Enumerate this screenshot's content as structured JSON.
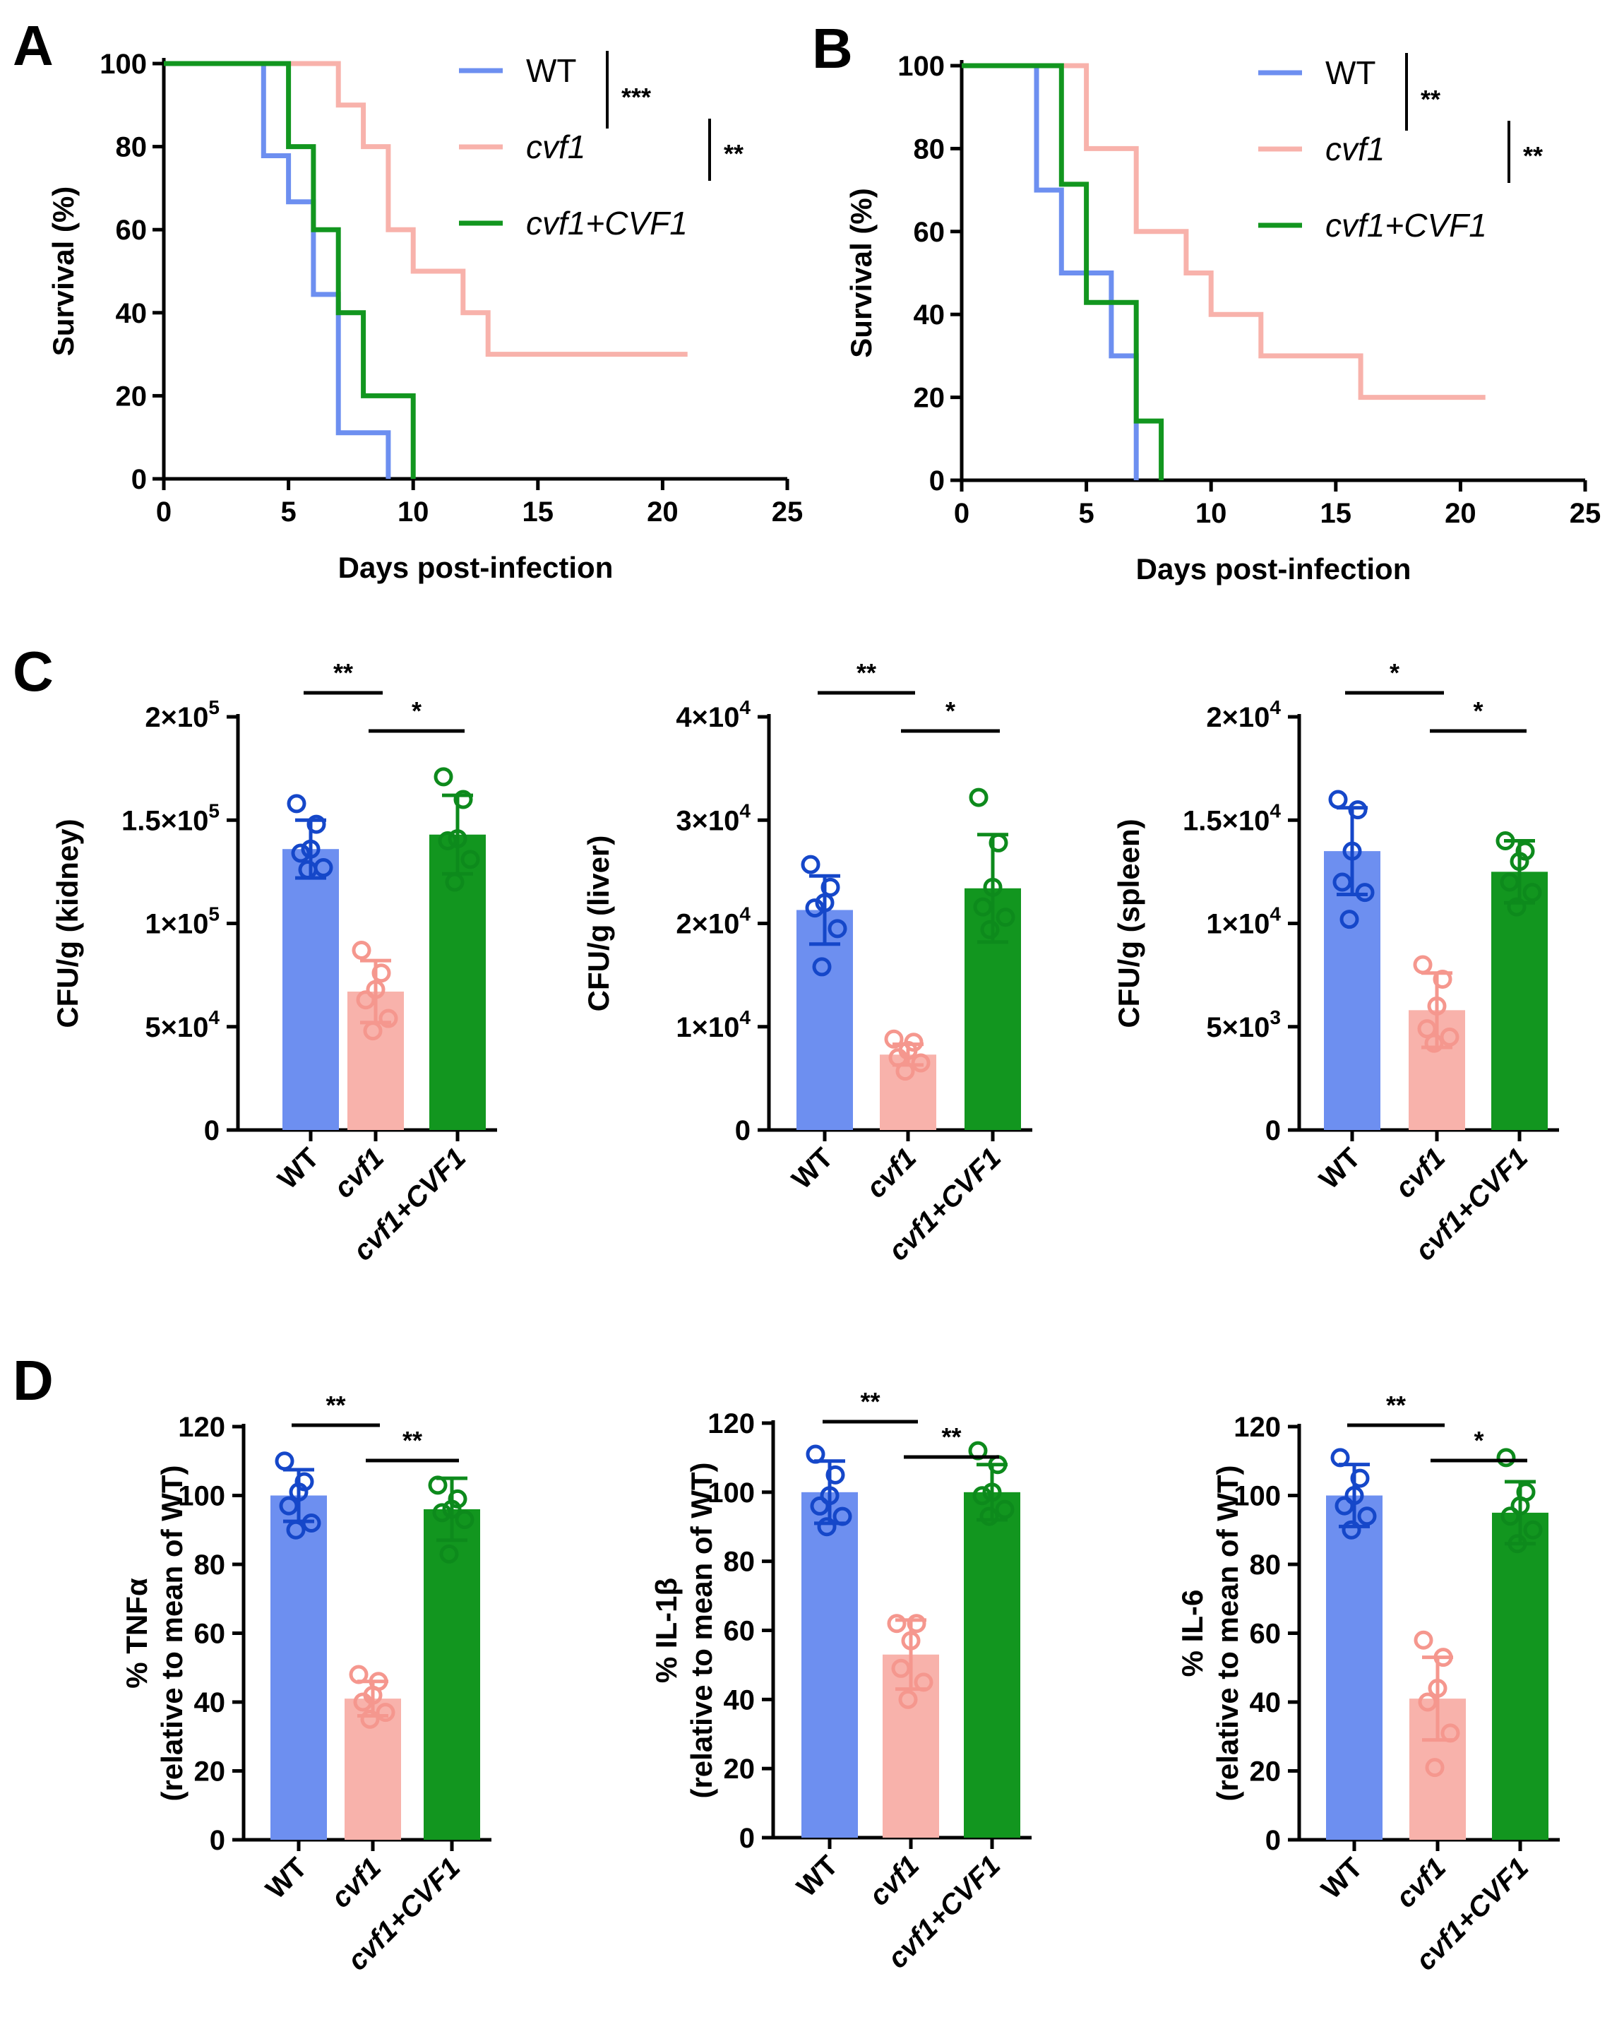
{
  "panel_labels": [
    "A",
    "B",
    "C",
    "D"
  ],
  "colors": {
    "WT": "#6d8ff0",
    "cvf1": "#f8b2ab",
    "cvf1+CVF1": "#12961f",
    "dot_WT": "#1547c9",
    "dot_cvf1": "#f5978e",
    "dot_cvf1+CVF1": "#0d8a1c"
  },
  "chart_data": [
    {
      "id": "A",
      "type": "line",
      "subtype": "survival-step",
      "xlabel": "Days post-infection",
      "ylabel": "Survival (%)",
      "xlim": [
        0,
        25
      ],
      "ylim": [
        0,
        100
      ],
      "xticks": [
        "0",
        "5",
        "10",
        "15",
        "20",
        "25"
      ],
      "yticks": [
        "0",
        "20",
        "40",
        "60",
        "80",
        "100"
      ],
      "series": [
        {
          "name": "WT",
          "italic": false,
          "points": [
            [
              0,
              100
            ],
            [
              4,
              100
            ],
            [
              4,
              77.8
            ],
            [
              5,
              77.8
            ],
            [
              5,
              66.7
            ],
            [
              6,
              66.7
            ],
            [
              6,
              44.4
            ],
            [
              7,
              44.4
            ],
            [
              7,
              11.1
            ],
            [
              9,
              11.1
            ],
            [
              9,
              0
            ]
          ]
        },
        {
          "name": "cvf1",
          "italic": true,
          "points": [
            [
              0,
              100
            ],
            [
              7,
              100
            ],
            [
              7,
              90
            ],
            [
              8,
              90
            ],
            [
              8,
              80
            ],
            [
              9,
              80
            ],
            [
              9,
              60
            ],
            [
              10,
              60
            ],
            [
              10,
              50
            ],
            [
              12,
              50
            ],
            [
              12,
              40
            ],
            [
              13,
              40
            ],
            [
              13,
              30
            ],
            [
              21,
              30
            ]
          ]
        },
        {
          "name": "cvf1+CVF1",
          "italic": true,
          "points": [
            [
              0,
              100
            ],
            [
              5,
              100
            ],
            [
              5,
              80
            ],
            [
              6,
              80
            ],
            [
              6,
              60
            ],
            [
              7,
              60
            ],
            [
              7,
              40
            ],
            [
              8,
              40
            ],
            [
              8,
              20
            ],
            [
              10,
              20
            ],
            [
              10,
              0
            ]
          ]
        }
      ],
      "significance": [
        "***",
        "**"
      ]
    },
    {
      "id": "B",
      "type": "line",
      "subtype": "survival-step",
      "xlabel": "Days post-infection",
      "ylabel": "Survival (%)",
      "xlim": [
        0,
        25
      ],
      "ylim": [
        0,
        100
      ],
      "xticks": [
        "0",
        "5",
        "10",
        "15",
        "20",
        "25"
      ],
      "yticks": [
        "0",
        "20",
        "40",
        "60",
        "80",
        "100"
      ],
      "series": [
        {
          "name": "WT",
          "italic": false,
          "points": [
            [
              0,
              100
            ],
            [
              3,
              100
            ],
            [
              3,
              70
            ],
            [
              4,
              70
            ],
            [
              4,
              50
            ],
            [
              6,
              50
            ],
            [
              6,
              30
            ],
            [
              7,
              30
            ],
            [
              7,
              0
            ]
          ]
        },
        {
          "name": "cvf1",
          "italic": true,
          "points": [
            [
              0,
              100
            ],
            [
              5,
              100
            ],
            [
              5,
              80
            ],
            [
              7,
              80
            ],
            [
              7,
              60
            ],
            [
              9,
              60
            ],
            [
              9,
              50
            ],
            [
              10,
              50
            ],
            [
              10,
              40
            ],
            [
              12,
              40
            ],
            [
              12,
              30
            ],
            [
              16,
              30
            ],
            [
              16,
              20
            ],
            [
              21,
              20
            ]
          ]
        },
        {
          "name": "cvf1+CVF1",
          "italic": true,
          "points": [
            [
              0,
              100
            ],
            [
              4,
              100
            ],
            [
              4,
              71.4
            ],
            [
              5,
              71.4
            ],
            [
              5,
              42.9
            ],
            [
              7,
              42.9
            ],
            [
              7,
              14.3
            ],
            [
              8,
              14.3
            ],
            [
              8,
              0
            ]
          ]
        }
      ],
      "significance": [
        "**",
        "**"
      ]
    },
    {
      "id": "C1",
      "type": "bar",
      "ylabel": "CFU/g (kidney)",
      "ylim": [
        0,
        200000
      ],
      "yticks": [
        {
          "v": 0,
          "m": "0",
          "e": ""
        },
        {
          "v": 50000,
          "m": "5×10",
          "e": "4"
        },
        {
          "v": 100000,
          "m": "1×10",
          "e": "5"
        },
        {
          "v": 150000,
          "m": "1.5×10",
          "e": "5"
        },
        {
          "v": 200000,
          "m": "2×10",
          "e": "5"
        }
      ],
      "categories": [
        "WT",
        "cvf1",
        "cvf1+CVF1"
      ],
      "values": [
        136000,
        67000,
        143000
      ],
      "sd": [
        14000,
        15000,
        19000
      ],
      "points": [
        [
          158000,
          148000,
          136000,
          134000,
          127000,
          126000
        ],
        [
          87000,
          76000,
          68000,
          63000,
          54000,
          48000
        ],
        [
          171000,
          160000,
          141000,
          140000,
          131000,
          120000
        ]
      ],
      "significance": [
        {
          "from": 0,
          "to": 1,
          "label": "**"
        },
        {
          "from": 1,
          "to": 2,
          "label": "*"
        }
      ]
    },
    {
      "id": "C2",
      "type": "bar",
      "ylabel": "CFU/g (liver)",
      "ylim": [
        0,
        40000
      ],
      "yticks": [
        {
          "v": 0,
          "m": "0",
          "e": ""
        },
        {
          "v": 10000,
          "m": "1×10",
          "e": "4"
        },
        {
          "v": 20000,
          "m": "2×10",
          "e": "4"
        },
        {
          "v": 30000,
          "m": "3×10",
          "e": "4"
        },
        {
          "v": 40000,
          "m": "4×10",
          "e": "4"
        }
      ],
      "categories": [
        "WT",
        "cvf1",
        "cvf1+CVF1"
      ],
      "values": [
        21300,
        7300,
        23400
      ],
      "sd": [
        3300,
        1000,
        5200
      ],
      "points": [
        [
          25700,
          23500,
          22000,
          21500,
          19500,
          15800
        ],
        [
          8800,
          8500,
          7700,
          7000,
          6500,
          5700
        ],
        [
          32200,
          27800,
          23500,
          21600,
          20600,
          19400
        ]
      ],
      "significance": [
        {
          "from": 0,
          "to": 1,
          "label": "**"
        },
        {
          "from": 1,
          "to": 2,
          "label": "*"
        }
      ]
    },
    {
      "id": "C3",
      "type": "bar",
      "ylabel": "CFU/g (spleen)",
      "ylim": [
        0,
        20000
      ],
      "yticks": [
        {
          "v": 0,
          "m": "0",
          "e": ""
        },
        {
          "v": 5000,
          "m": "5×10",
          "e": "3"
        },
        {
          "v": 10000,
          "m": "1×10",
          "e": "4"
        },
        {
          "v": 15000,
          "m": "1.5×10",
          "e": "4"
        },
        {
          "v": 20000,
          "m": "2×10",
          "e": "4"
        }
      ],
      "categories": [
        "WT",
        "cvf1",
        "cvf1+CVF1"
      ],
      "values": [
        13500,
        5800,
        12500
      ],
      "sd": [
        2100,
        1800,
        1500
      ],
      "points": [
        [
          16000,
          15500,
          13500,
          12000,
          11500,
          10200
        ],
        [
          8000,
          7300,
          6000,
          4900,
          4500,
          4200
        ],
        [
          14000,
          13500,
          13000,
          12000,
          11500,
          10800
        ]
      ],
      "significance": [
        {
          "from": 0,
          "to": 1,
          "label": "*"
        },
        {
          "from": 1,
          "to": 2,
          "label": "*"
        }
      ]
    },
    {
      "id": "D1",
      "type": "bar",
      "ylabel": "% TNFα",
      "ylabel2": "(relative to mean of WT)",
      "ylim": [
        0,
        120
      ],
      "yticks": [
        {
          "v": 0,
          "m": "0",
          "e": ""
        },
        {
          "v": 20,
          "m": "20",
          "e": ""
        },
        {
          "v": 40,
          "m": "40",
          "e": ""
        },
        {
          "v": 60,
          "m": "60",
          "e": ""
        },
        {
          "v": 80,
          "m": "80",
          "e": ""
        },
        {
          "v": 100,
          "m": "100",
          "e": ""
        },
        {
          "v": 120,
          "m": "120",
          "e": ""
        }
      ],
      "categories": [
        "WT",
        "cvf1",
        "cvf1+CVF1"
      ],
      "values": [
        100,
        41,
        96
      ],
      "sd": [
        7.5,
        5,
        9
      ],
      "points": [
        [
          110,
          104,
          101,
          97,
          92,
          90
        ],
        [
          48,
          46,
          42,
          40,
          37,
          35
        ],
        [
          103,
          99,
          96,
          95,
          93,
          83
        ]
      ],
      "significance": [
        {
          "from": 0,
          "to": 1,
          "label": "**"
        },
        {
          "from": 1,
          "to": 2,
          "label": "**"
        }
      ]
    },
    {
      "id": "D2",
      "type": "bar",
      "ylabel": "% IL-1β",
      "ylabel2": "(relative to mean of WT)",
      "ylim": [
        0,
        120
      ],
      "yticks": [
        {
          "v": 0,
          "m": "0",
          "e": ""
        },
        {
          "v": 20,
          "m": "20",
          "e": ""
        },
        {
          "v": 40,
          "m": "40",
          "e": ""
        },
        {
          "v": 60,
          "m": "60",
          "e": ""
        },
        {
          "v": 80,
          "m": "80",
          "e": ""
        },
        {
          "v": 100,
          "m": "100",
          "e": ""
        },
        {
          "v": 120,
          "m": "120",
          "e": ""
        }
      ],
      "categories": [
        "WT",
        "cvf1",
        "cvf1+CVF1"
      ],
      "values": [
        100,
        53,
        100
      ],
      "sd": [
        9,
        10,
        8
      ],
      "points": [
        [
          111,
          105,
          99,
          96,
          93,
          90
        ],
        [
          62,
          62,
          57,
          49,
          45,
          40
        ],
        [
          112,
          108,
          100,
          99,
          95,
          93
        ]
      ],
      "significance": [
        {
          "from": 0,
          "to": 1,
          "label": "**"
        },
        {
          "from": 1,
          "to": 2,
          "label": "**"
        }
      ]
    },
    {
      "id": "D3",
      "type": "bar",
      "ylabel": "% IL-6",
      "ylabel2": "(relative to mean of WT)",
      "ylim": [
        0,
        120
      ],
      "yticks": [
        {
          "v": 0,
          "m": "0",
          "e": ""
        },
        {
          "v": 20,
          "m": "20",
          "e": ""
        },
        {
          "v": 40,
          "m": "40",
          "e": ""
        },
        {
          "v": 60,
          "m": "60",
          "e": ""
        },
        {
          "v": 80,
          "m": "80",
          "e": ""
        },
        {
          "v": 100,
          "m": "100",
          "e": ""
        },
        {
          "v": 120,
          "m": "120",
          "e": ""
        }
      ],
      "categories": [
        "WT",
        "cvf1",
        "cvf1+CVF1"
      ],
      "values": [
        100,
        41,
        95
      ],
      "sd": [
        9,
        12,
        9
      ],
      "points": [
        [
          111,
          105,
          100,
          97,
          94,
          90
        ],
        [
          58,
          53,
          44,
          40,
          31,
          21
        ],
        [
          111,
          101,
          97,
          94,
          90,
          86
        ]
      ],
      "significance": [
        {
          "from": 0,
          "to": 1,
          "label": "**"
        },
        {
          "from": 1,
          "to": 2,
          "label": "*"
        }
      ]
    }
  ]
}
